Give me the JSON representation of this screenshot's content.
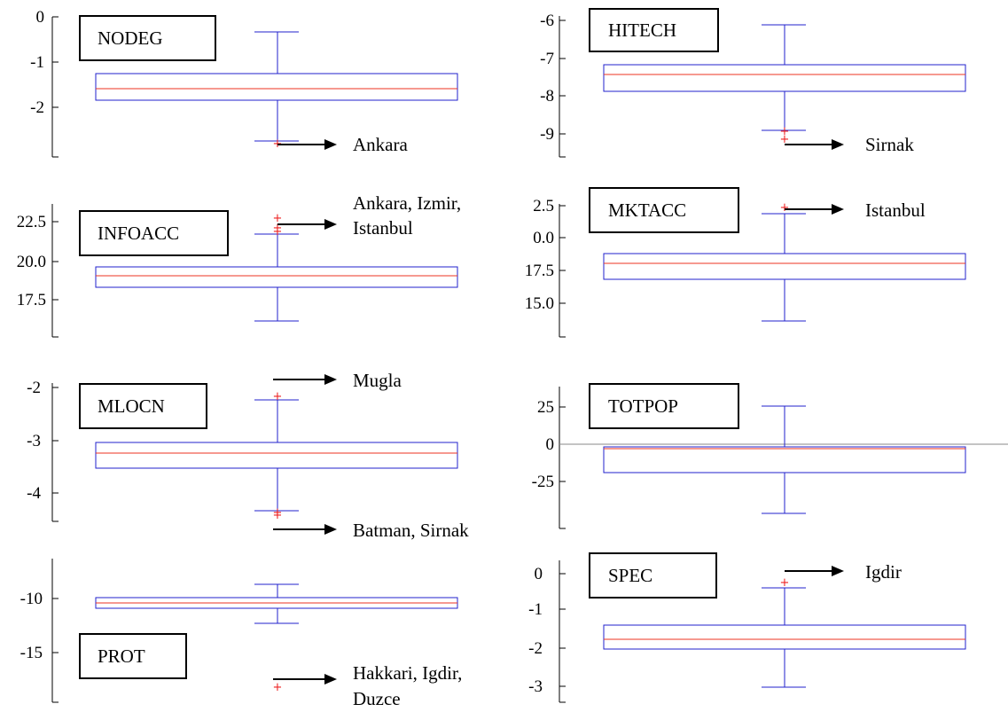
{
  "chart_data": [
    {
      "type": "boxplot",
      "label": "NODEG",
      "ticks": [
        "0",
        "-1",
        "-2"
      ],
      "box": {
        "whisker_high": "-0.3",
        "q3": "-1.22",
        "median": "-1.55",
        "q1": "-1.8",
        "whisker_low": "-2.75"
      },
      "outliers": [
        "-2.78"
      ],
      "annotations": [
        "Ankara"
      ]
    },
    {
      "type": "boxplot",
      "label": "HITECH",
      "ticks": [
        "-6",
        "-7",
        "-8",
        "-9"
      ],
      "box": {
        "whisker_high": "-6.12",
        "q3": "-7.18",
        "median": "-7.45",
        "q1": "-7.85",
        "whisker_low": "-8.9"
      },
      "outliers": [
        "-8.92",
        "-9.12"
      ],
      "annotations": [
        "Sirnak"
      ]
    },
    {
      "type": "boxplot",
      "label": "INFOACC",
      "ticks": [
        "22.5",
        "20.0",
        "17.5"
      ],
      "box": {
        "whisker_high": "21.8",
        "q3": "19.5",
        "median": "19.0",
        "q1": "18.2",
        "whisker_low": "15.9"
      },
      "outliers": [
        "22.7",
        "22.1",
        "21.9"
      ],
      "annotations": [
        "Ankara, Izmir,",
        "Istanbul"
      ]
    },
    {
      "type": "boxplot",
      "label": "MKTACC",
      "ticks": [
        "2.5",
        "0.0",
        "17.5",
        "15.0"
      ],
      "box": {
        "whisker_high": "1.8",
        "q3": "-0.8",
        "median": "-1.2",
        "q1": "-1.8",
        "whisker_low": "-5.8"
      },
      "outliers": [
        "2.2"
      ],
      "annotations": [
        "Istanbul"
      ]
    },
    {
      "type": "boxplot",
      "label": "MLOCN",
      "ticks": [
        "-2",
        "-3",
        "-4"
      ],
      "box": {
        "whisker_high": "-2.2",
        "q3": "-3.0",
        "median": "-3.2",
        "q1": "-3.5",
        "whisker_low": "-4.3"
      },
      "outliers": [
        "-2.13",
        "-4.35",
        "-4.38"
      ],
      "annotations": [
        "Mugla",
        "Batman, Sirnak"
      ]
    },
    {
      "type": "boxplot",
      "label": "TOTPOP",
      "ticks": [
        "25",
        "0",
        "-25"
      ],
      "box": {
        "whisker_high": "25",
        "q3": "-1",
        "median": "-2",
        "q1": "-18",
        "whisker_low": "-45"
      },
      "outliers": [],
      "annotations": []
    },
    {
      "type": "boxplot",
      "label": "PROT",
      "ticks": [
        "-10",
        "-15"
      ],
      "box": {
        "whisker_high": "-8.7",
        "q3": "-10.0",
        "median": "-10.4",
        "q1": "-10.9",
        "whisker_low": "-12.3"
      },
      "outliers": [
        "-18.3"
      ],
      "annotations": [
        "Hakkari, Igdir,",
        "Duzce"
      ]
    },
    {
      "type": "boxplot",
      "label": "SPEC",
      "ticks": [
        "0",
        "-1",
        "-2",
        "-3"
      ],
      "box": {
        "whisker_high": "-0.4",
        "q3": "-1.35",
        "median": "-1.8",
        "q1": "-2.0",
        "whisker_low": "-3.0"
      },
      "outliers": [
        "-0.28"
      ],
      "annotations": [
        "Igdir"
      ]
    }
  ],
  "colors": {
    "box": "#2222cc",
    "median": "#ee3322",
    "outlier": "#ee2222",
    "axis": "#000000",
    "zero_line": "#888888"
  }
}
